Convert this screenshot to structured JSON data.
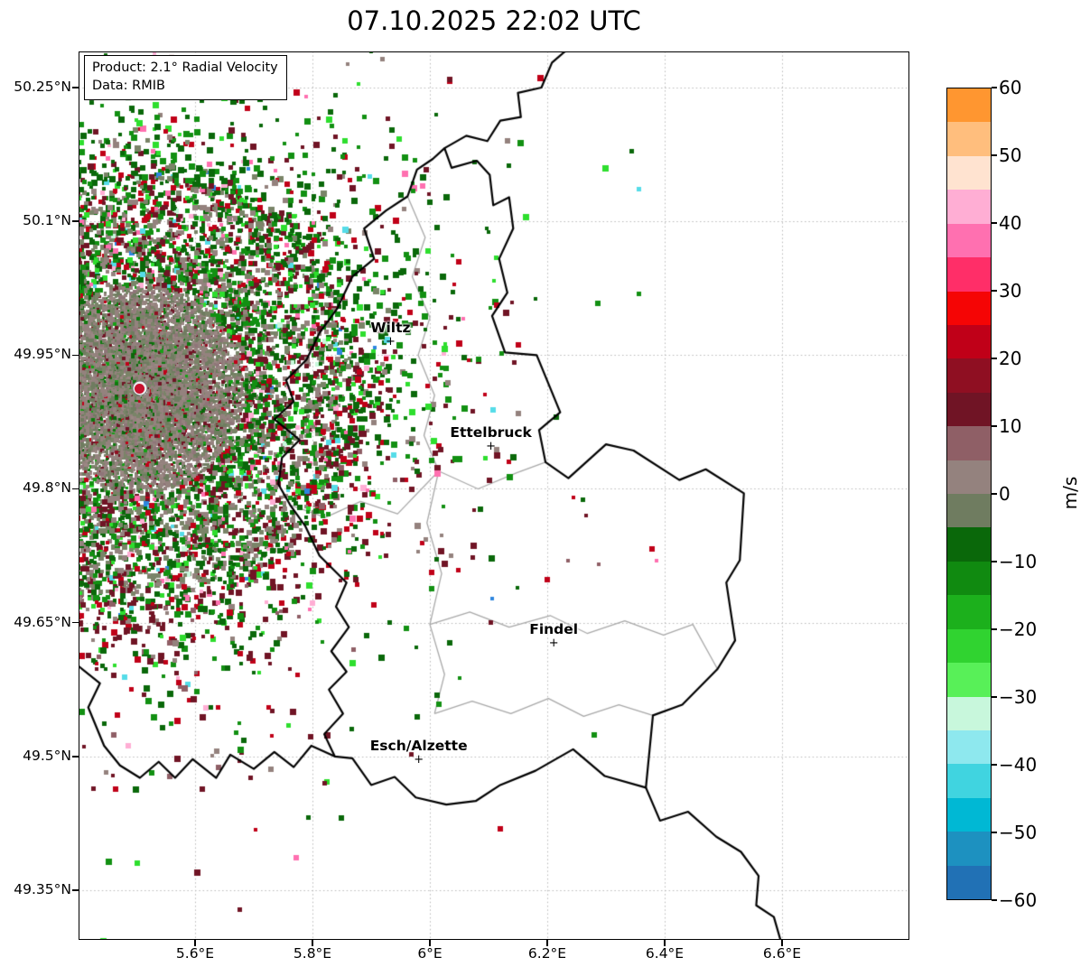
{
  "title": "07.10.2025 22:02 UTC",
  "chart_data": {
    "type": "scatter",
    "subtype": "radar-radial-velocity-map",
    "title": "07.10.2025 22:02 UTC",
    "product_label": "Product: 2.1° Radial Velocity",
    "data_source_label": "Data: RMIB",
    "extent": {
      "lon_min": 5.4015,
      "lon_max": 6.8169,
      "lat_min": 49.2943,
      "lat_max": 50.2905
    },
    "x_axis": {
      "ticks": [
        {
          "value": 5.6,
          "label": "5.6°E"
        },
        {
          "value": 5.8,
          "label": "5.8°E"
        },
        {
          "value": 6.0,
          "label": "6°E"
        },
        {
          "value": 6.2,
          "label": "6.2°E"
        },
        {
          "value": 6.4,
          "label": "6.4°E"
        },
        {
          "value": 6.6,
          "label": "6.6°E"
        }
      ]
    },
    "y_axis": {
      "ticks": [
        {
          "value": 50.25,
          "label": "50.25°N"
        },
        {
          "value": 50.1,
          "label": "50.1°N"
        },
        {
          "value": 49.95,
          "label": "49.95°N"
        },
        {
          "value": 49.8,
          "label": "49.8°N"
        },
        {
          "value": 49.65,
          "label": "49.65°N"
        },
        {
          "value": 49.5,
          "label": "49.5°N"
        },
        {
          "value": 49.35,
          "label": "49.35°N"
        }
      ]
    },
    "colorbar": {
      "unit": "m/s",
      "min": -60,
      "max": 60,
      "tick_step": 10,
      "ticks": [
        {
          "value": 60,
          "label": "60"
        },
        {
          "value": 50,
          "label": "50"
        },
        {
          "value": 40,
          "label": "40"
        },
        {
          "value": 30,
          "label": "30"
        },
        {
          "value": 20,
          "label": "20"
        },
        {
          "value": 10,
          "label": "10"
        },
        {
          "value": 0,
          "label": "0"
        },
        {
          "value": -10,
          "label": "−10"
        },
        {
          "value": -20,
          "label": "−20"
        },
        {
          "value": -30,
          "label": "−30"
        },
        {
          "value": -40,
          "label": "−40"
        },
        {
          "value": -50,
          "label": "−50"
        },
        {
          "value": -60,
          "label": "−60"
        }
      ],
      "colors_bottom_to_top": [
        "#2171b5",
        "#1d91c0",
        "#00b8d4",
        "#40d4e0",
        "#8ee8ee",
        "#c8f7dc",
        "#58f058",
        "#30d330",
        "#1cb01c",
        "#108a10",
        "#0a680a",
        "#6f7c60",
        "#94827e",
        "#8f5f66",
        "#701425",
        "#8f0f22",
        "#c00018",
        "#f50505",
        "#ff2e68",
        "#ff70b0",
        "#ffaed4",
        "#ffe3d0",
        "#ffbe7d",
        "#ff9630"
      ]
    },
    "radar_site": {
      "lon": 5.506,
      "lat": 49.9125,
      "marker_color": "#c8102e"
    },
    "cities": [
      {
        "name": "Wiltz",
        "lon": 5.933,
        "lat": 49.965
      },
      {
        "name": "Ettelbruck",
        "lon": 6.104,
        "lat": 49.847
      },
      {
        "name": "Findel",
        "lon": 6.211,
        "lat": 49.626
      },
      {
        "name": "Esch/Alzette",
        "lon": 5.981,
        "lat": 49.496
      }
    ],
    "borders": {
      "luxembourg": [
        [
          6.025,
          50.182
        ],
        [
          6.037,
          50.16
        ],
        [
          6.08,
          50.168
        ],
        [
          6.102,
          50.152
        ],
        [
          6.108,
          50.118
        ],
        [
          6.135,
          50.127
        ],
        [
          6.142,
          50.092
        ],
        [
          6.118,
          50.058
        ],
        [
          6.132,
          50.02
        ],
        [
          6.106,
          49.994
        ],
        [
          6.128,
          49.953
        ],
        [
          6.182,
          49.95
        ],
        [
          6.222,
          49.886
        ],
        [
          6.186,
          49.866
        ],
        [
          6.197,
          49.83
        ],
        [
          6.236,
          49.812
        ],
        [
          6.3,
          49.85
        ],
        [
          6.347,
          49.843
        ],
        [
          6.425,
          49.81
        ],
        [
          6.47,
          49.822
        ],
        [
          6.535,
          49.795
        ],
        [
          6.528,
          49.72
        ],
        [
          6.505,
          49.695
        ],
        [
          6.52,
          49.63
        ],
        [
          6.49,
          49.598
        ],
        [
          6.43,
          49.558
        ],
        [
          6.38,
          49.546
        ],
        [
          6.368,
          49.465
        ],
        [
          6.298,
          49.478
        ],
        [
          6.244,
          49.508
        ],
        [
          6.18,
          49.484
        ],
        [
          6.12,
          49.468
        ],
        [
          6.078,
          49.45
        ],
        [
          6.028,
          49.446
        ],
        [
          5.976,
          49.454
        ],
        [
          5.94,
          49.477
        ],
        [
          5.9,
          49.468
        ],
        [
          5.868,
          49.498
        ],
        [
          5.838,
          49.5
        ],
        [
          5.82,
          49.525
        ],
        [
          5.852,
          49.548
        ],
        [
          5.828,
          49.575
        ],
        [
          5.858,
          49.595
        ],
        [
          5.832,
          49.618
        ],
        [
          5.862,
          49.645
        ],
        [
          5.84,
          49.668
        ],
        [
          5.858,
          49.695
        ],
        [
          5.812,
          49.725
        ],
        [
          5.788,
          49.758
        ],
        [
          5.762,
          49.782
        ],
        [
          5.742,
          49.805
        ],
        [
          5.748,
          49.835
        ],
        [
          5.778,
          49.855
        ],
        [
          5.735,
          49.878
        ],
        [
          5.768,
          49.898
        ],
        [
          5.755,
          49.922
        ],
        [
          5.79,
          49.945
        ],
        [
          5.812,
          49.975
        ],
        [
          5.842,
          50.002
        ],
        [
          5.868,
          50.038
        ],
        [
          5.905,
          50.058
        ],
        [
          5.888,
          50.092
        ],
        [
          5.925,
          50.112
        ],
        [
          5.962,
          50.128
        ],
        [
          5.978,
          50.158
        ],
        [
          6.005,
          50.17
        ]
      ],
      "neighbors": [
        [
          [
            6.025,
            50.182
          ],
          [
            6.062,
            50.196
          ],
          [
            6.098,
            50.19
          ],
          [
            6.12,
            50.213
          ],
          [
            6.155,
            50.217
          ],
          [
            6.15,
            50.244
          ],
          [
            6.19,
            50.25
          ],
          [
            6.208,
            50.278
          ],
          [
            6.238,
            50.295
          ]
        ],
        [
          [
            5.838,
            49.5
          ],
          [
            5.798,
            49.512
          ],
          [
            5.768,
            49.488
          ],
          [
            5.735,
            49.505
          ],
          [
            5.7,
            49.486
          ],
          [
            5.66,
            49.502
          ],
          [
            5.636,
            49.476
          ],
          [
            5.596,
            49.497
          ],
          [
            5.566,
            49.476
          ],
          [
            5.538,
            49.494
          ],
          [
            5.506,
            49.476
          ],
          [
            5.472,
            49.49
          ],
          [
            5.445,
            49.512
          ],
          [
            5.418,
            49.555
          ],
          [
            5.438,
            49.582
          ],
          [
            5.4,
            49.602
          ]
        ],
        [
          [
            6.368,
            49.465
          ],
          [
            6.392,
            49.428
          ],
          [
            6.44,
            49.438
          ],
          [
            6.488,
            49.41
          ],
          [
            6.53,
            49.393
          ],
          [
            6.56,
            49.366
          ],
          [
            6.556,
            49.333
          ],
          [
            6.586,
            49.32
          ],
          [
            6.6,
            49.288
          ]
        ]
      ],
      "districts": [
        [
          [
            5.962,
            50.128
          ],
          [
            5.992,
            50.082
          ],
          [
            5.97,
            50.038
          ],
          [
            6.0,
            49.992
          ],
          [
            5.98,
            49.95
          ],
          [
            6.008,
            49.905
          ],
          [
            5.99,
            49.86
          ],
          [
            6.015,
            49.82
          ]
        ],
        [
          [
            5.762,
            49.782
          ],
          [
            5.822,
            49.768
          ],
          [
            5.882,
            49.786
          ],
          [
            5.945,
            49.772
          ],
          [
            6.015,
            49.82
          ],
          [
            6.082,
            49.8
          ],
          [
            6.148,
            49.818
          ],
          [
            6.197,
            49.83
          ]
        ],
        [
          [
            6.015,
            49.82
          ],
          [
            5.995,
            49.762
          ],
          [
            6.02,
            49.705
          ],
          [
            6.0,
            49.648
          ],
          [
            6.025,
            49.592
          ],
          [
            6.008,
            49.548
          ]
        ],
        [
          [
            6.0,
            49.648
          ],
          [
            6.068,
            49.662
          ],
          [
            6.135,
            49.645
          ],
          [
            6.205,
            49.658
          ],
          [
            6.268,
            49.638
          ],
          [
            6.332,
            49.652
          ],
          [
            6.398,
            49.636
          ],
          [
            6.448,
            49.648
          ],
          [
            6.49,
            49.598
          ]
        ],
        [
          [
            6.008,
            49.548
          ],
          [
            6.072,
            49.562
          ],
          [
            6.138,
            49.548
          ],
          [
            6.202,
            49.565
          ],
          [
            6.262,
            49.545
          ],
          [
            6.322,
            49.558
          ],
          [
            6.38,
            49.546
          ]
        ]
      ]
    },
    "scatter_field": {
      "seed": 42,
      "n_points": 26000,
      "core_radius_px": 115,
      "mid_radius_px": 235,
      "max_radius_px": 630,
      "palettes": {
        "core_mauve": [
          [
            5,
            "#94827e"
          ],
          [
            3,
            "#8f7579"
          ],
          [
            2,
            "#9b8884"
          ],
          [
            1,
            "#6f7c60"
          ],
          [
            0.4,
            "#701425"
          ],
          [
            0.3,
            "#0a680a"
          ]
        ],
        "core_olive": [
          [
            5,
            "#6f7c60"
          ],
          [
            3,
            "#7a8468"
          ],
          [
            2,
            "#94827e"
          ],
          [
            0.5,
            "#0a680a"
          ],
          [
            0.4,
            "#8f0f22"
          ]
        ],
        "core_mix": [
          [
            3,
            "#94827e"
          ],
          [
            3,
            "#7a8468"
          ],
          [
            1,
            "#0e7a0e"
          ],
          [
            1,
            "#701425"
          ],
          [
            0.5,
            "#c00018"
          ],
          [
            0.5,
            "#17a017"
          ]
        ],
        "mid": [
          [
            2.4,
            "#0a680a"
          ],
          [
            1.4,
            "#129012"
          ],
          [
            1.6,
            "#7a8468"
          ],
          [
            1.4,
            "#94827e"
          ],
          [
            1.4,
            "#701425"
          ],
          [
            0.7,
            "#c00018"
          ],
          [
            0.5,
            "#2ede2e"
          ],
          [
            0.15,
            "#ff70b0"
          ],
          [
            0.1,
            "#55dce8"
          ],
          [
            0.1,
            "#ffaed4"
          ],
          [
            0.05,
            "#2e86de"
          ],
          [
            0.1,
            "#c8f7dc"
          ]
        ],
        "outer_n": [
          [
            3.2,
            "#0a680a"
          ],
          [
            1.8,
            "#129012"
          ],
          [
            0.8,
            "#2ede2e"
          ],
          [
            1.2,
            "#701425"
          ],
          [
            0.8,
            "#c00018"
          ],
          [
            0.4,
            "#94827e"
          ],
          [
            0.4,
            "#7a8468"
          ],
          [
            0.2,
            "#ff70b0"
          ],
          [
            0.12,
            "#55dce8"
          ],
          [
            0.12,
            "#ffaed4"
          ],
          [
            0.05,
            "#2e86de"
          ]
        ],
        "outer_s": [
          [
            2.0,
            "#0a680a"
          ],
          [
            1.0,
            "#129012"
          ],
          [
            0.5,
            "#2ede2e"
          ],
          [
            2.2,
            "#701425"
          ],
          [
            1.3,
            "#c00018"
          ],
          [
            0.5,
            "#94827e"
          ],
          [
            0.4,
            "#8f5f66"
          ],
          [
            0.25,
            "#ff70b0"
          ],
          [
            0.1,
            "#55dce8"
          ],
          [
            0.15,
            "#ffaed4"
          ],
          [
            0.05,
            "#2e86de"
          ]
        ],
        "outer": [
          [
            2.6,
            "#0a680a"
          ],
          [
            1.5,
            "#129012"
          ],
          [
            0.7,
            "#2ede2e"
          ],
          [
            1.6,
            "#701425"
          ],
          [
            1.0,
            "#c00018"
          ],
          [
            0.5,
            "#94827e"
          ],
          [
            0.2,
            "#ff70b0"
          ],
          [
            0.12,
            "#55dce8"
          ],
          [
            0.12,
            "#ffaed4"
          ],
          [
            0.06,
            "#2e86de"
          ]
        ]
      }
    }
  }
}
